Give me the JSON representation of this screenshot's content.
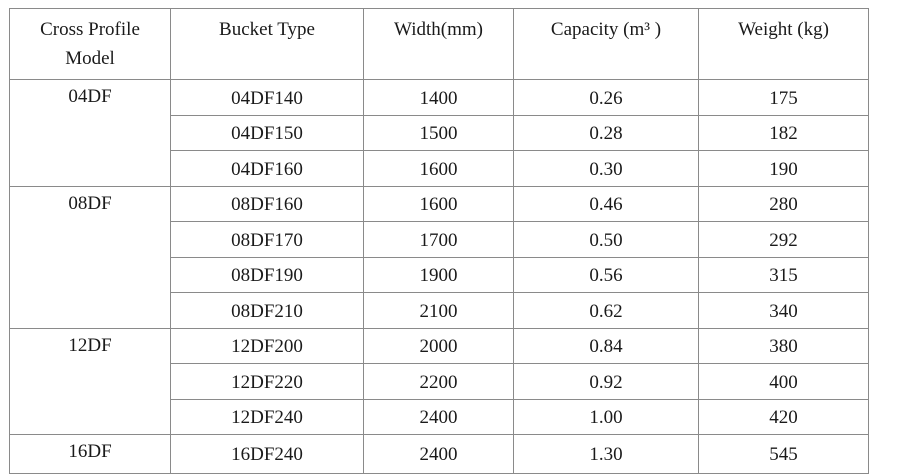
{
  "table": {
    "header": [
      "Cross Profile Model",
      "Bucket Type",
      "Width(mm)",
      "Capacity (m³ )",
      "Weight (kg)"
    ],
    "groups": [
      {
        "model": "04DF",
        "rows": [
          [
            "04DF140",
            "1400",
            "0.26",
            "175"
          ],
          [
            "04DF150",
            "1500",
            "0.28",
            "182"
          ],
          [
            "04DF160",
            "1600",
            "0.30",
            "190"
          ]
        ]
      },
      {
        "model": "08DF",
        "rows": [
          [
            "08DF160",
            "1600",
            "0.46",
            "280"
          ],
          [
            "08DF170",
            "1700",
            "0.50",
            "292"
          ],
          [
            "08DF190",
            "1900",
            "0.56",
            "315"
          ],
          [
            "08DF210",
            "2100",
            "0.62",
            "340"
          ]
        ]
      },
      {
        "model": "12DF",
        "rows": [
          [
            "12DF200",
            "2000",
            "0.84",
            "380"
          ],
          [
            "12DF220",
            "2200",
            "0.92",
            "400"
          ],
          [
            "12DF240",
            "2400",
            "1.00",
            "420"
          ]
        ]
      },
      {
        "model": "16DF",
        "rows": [
          [
            "16DF240",
            "2400",
            "1.30",
            "545"
          ]
        ]
      }
    ]
  }
}
